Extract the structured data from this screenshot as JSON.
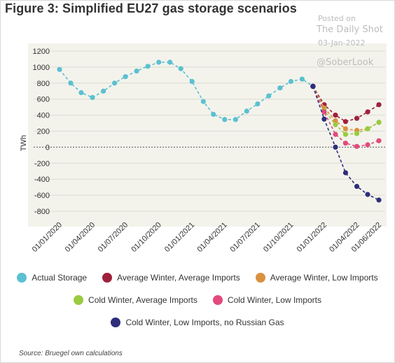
{
  "page": {
    "title": "Figure 3: Simplified EU27 gas storage scenarios",
    "source": "Source: Bruegel own calculations",
    "watermark": {
      "line1": "Posted on",
      "line2": "The Daily Shot",
      "line3": "03-Jan-2022",
      "line4": "@SoberLook"
    }
  },
  "chart_data": {
    "type": "line",
    "title": "Figure 3: Simplified EU27 gas storage scenarios",
    "ylabel": "TWh",
    "xlabel": "",
    "ylim": [
      -900,
      1200
    ],
    "yticks": [
      1200,
      1000,
      800,
      600,
      400,
      200,
      0,
      -200,
      -400,
      -600,
      -800
    ],
    "ytick_labels": [
      "1200",
      "1000",
      "800",
      "600",
      "400",
      "200",
      "0",
      "-200",
      "-400",
      "-600",
      "-800"
    ],
    "xticks": [
      "2020-01-01",
      "2020-04-01",
      "2020-07-01",
      "2020-10-01",
      "2021-01-01",
      "2021-04-01",
      "2021-07-01",
      "2021-10-01",
      "2022-01-01",
      "2022-04-01",
      "2022-06-01"
    ],
    "xtick_labels": [
      "01/01/2020",
      "01/04/2020",
      "01/07/2020",
      "01/10/2020",
      "01/01/2021",
      "01/04/2021",
      "01/07/2021",
      "01/10/2021",
      "01/01/2022",
      "01/04/2022",
      "01/06/2022"
    ],
    "grid": true,
    "legend_position": "bottom",
    "series": [
      {
        "name": "Actual Storage",
        "color": "#5bc0d0",
        "x": [
          "2020-01-01",
          "2020-02-01",
          "2020-03-01",
          "2020-04-01",
          "2020-05-01",
          "2020-06-01",
          "2020-07-01",
          "2020-08-01",
          "2020-09-01",
          "2020-10-01",
          "2020-11-01",
          "2020-12-01",
          "2021-01-01",
          "2021-02-01",
          "2021-03-01",
          "2021-04-01",
          "2021-05-01",
          "2021-06-01",
          "2021-07-01",
          "2021-08-01",
          "2021-09-01",
          "2021-10-01",
          "2021-11-01",
          "2021-12-01"
        ],
        "values": [
          970,
          800,
          680,
          620,
          700,
          800,
          880,
          950,
          1010,
          1060,
          1060,
          980,
          820,
          570,
          410,
          345,
          345,
          450,
          540,
          640,
          740,
          820,
          850,
          760
        ]
      },
      {
        "name": "Average Winter, Average Imports",
        "color": "#a0203b",
        "x": [
          "2021-12-01",
          "2022-01-01",
          "2022-02-01",
          "2022-03-01",
          "2022-04-01",
          "2022-05-01",
          "2022-06-01"
        ],
        "values": [
          760,
          530,
          400,
          320,
          360,
          440,
          530
        ]
      },
      {
        "name": "Average Winter, Low Imports",
        "color": "#d9913e",
        "x": [
          "2021-12-01",
          "2022-01-01",
          "2022-02-01",
          "2022-03-01",
          "2022-04-01",
          "2022-05-01",
          "2022-06-01"
        ],
        "values": [
          760,
          490,
          330,
          230,
          210,
          230,
          310
        ]
      },
      {
        "name": "Cold Winter, Average Imports",
        "color": "#9acb41",
        "x": [
          "2021-12-01",
          "2022-01-01",
          "2022-02-01",
          "2022-03-01",
          "2022-04-01",
          "2022-05-01",
          "2022-06-01"
        ],
        "values": [
          760,
          460,
          280,
          160,
          170,
          230,
          310
        ]
      },
      {
        "name": "Cold Winter, Low Imports",
        "color": "#e24a7c",
        "x": [
          "2021-12-01",
          "2022-01-01",
          "2022-02-01",
          "2022-03-01",
          "2022-04-01",
          "2022-05-01",
          "2022-06-01"
        ],
        "values": [
          760,
          440,
          160,
          50,
          10,
          30,
          80
        ]
      },
      {
        "name": "Cold Winter, Low Imports, no Russian Gas",
        "color": "#2e2d7c",
        "x": [
          "2021-12-01",
          "2022-01-01",
          "2022-02-01",
          "2022-03-01",
          "2022-04-01",
          "2022-05-01",
          "2022-06-01"
        ],
        "values": [
          760,
          350,
          0,
          -320,
          -490,
          -590,
          -660
        ]
      }
    ]
  }
}
